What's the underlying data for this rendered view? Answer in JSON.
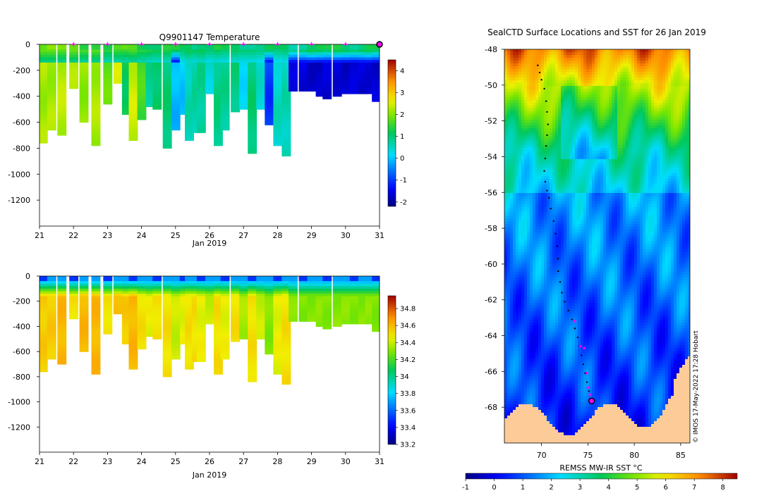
{
  "chart_data": [
    {
      "id": "temperature",
      "type": "heatmap",
      "title": "Q9901147  Temperature",
      "xlabel": "Jan 2019",
      "ylabel": "",
      "xlim": [
        21,
        31
      ],
      "ylim": [
        -1400,
        0
      ],
      "x_ticks": [
        "21",
        "22",
        "23",
        "24",
        "25",
        "26",
        "27",
        "28",
        "29",
        "30",
        "31"
      ],
      "y_ticks": [
        "0",
        "-200",
        "-400",
        "-600",
        "-800",
        "-1000",
        "-1200"
      ],
      "colorbar": {
        "min": -2.2,
        "max": 4.5,
        "ticks": [
          "-2",
          "-1",
          "0",
          "1",
          "2",
          "3",
          "4"
        ],
        "tick_values": [
          -2,
          -1,
          0,
          1,
          2,
          3,
          4
        ]
      },
      "surface_markers": [
        22,
        23,
        24,
        25,
        26,
        27,
        28,
        29,
        30
      ],
      "end_marker": 31,
      "profiles": {
        "times": [
          21.1,
          21.35,
          21.65,
          22.0,
          22.3,
          22.65,
          23.0,
          23.3,
          23.55,
          23.75,
          24.0,
          24.25,
          24.45,
          24.75,
          25.0,
          25.25,
          25.4,
          25.6,
          25.75,
          26.0,
          26.25,
          26.45,
          26.75,
          27.0,
          27.25,
          27.5,
          27.75,
          28.0,
          28.25,
          28.45,
          28.75,
          29.0,
          29.25,
          29.45,
          29.75,
          30.0,
          30.25,
          30.5,
          30.7,
          30.9
        ],
        "max_depth": [
          760,
          650,
          690,
          340,
          600,
          780,
          450,
          300,
          540,
          740,
          580,
          470,
          500,
          790,
          650,
          530,
          740,
          680,
          670,
          370,
          770,
          650,
          520,
          490,
          840,
          500,
          620,
          780,
          860,
          360,
          350,
          360,
          400,
          410,
          390,
          380,
          380,
          380,
          380,
          430
        ],
        "mixed_layer_temp": [
          1.8,
          1.8,
          1.7,
          1.8,
          1.6,
          1.7,
          1.4,
          1.5,
          1.5,
          1.6,
          1.4,
          1.3,
          1.2,
          1.3,
          1.1,
          1.0,
          1.2,
          1.1,
          1.2,
          1.0,
          1.1,
          1.0,
          1.1,
          1.0,
          1.0,
          0.9,
          1.0,
          0.9,
          1.0,
          0.8,
          1.0,
          1.2,
          1.1,
          1.0,
          1.2,
          1.1,
          1.0,
          1.1,
          1.2,
          1.0
        ],
        "deep_temp": [
          2.2,
          2.2,
          2.3,
          2.2,
          2.1,
          2.2,
          1.8,
          2.4,
          1.2,
          2.4,
          1.6,
          0.8,
          1.1,
          1.0,
          -0.1,
          0.0,
          0.6,
          0.7,
          0.8,
          0.4,
          0.9,
          0.8,
          0.9,
          0.2,
          1.0,
          0.4,
          -1.0,
          0.5,
          0.6,
          -1.7,
          -1.6,
          -1.7,
          -1.8,
          -1.7,
          -1.6,
          -1.7,
          -1.7,
          -1.7,
          -1.6,
          -1.7
        ]
      }
    },
    {
      "id": "salinity",
      "type": "heatmap",
      "title": "",
      "xlabel": "Jan 2019",
      "ylabel": "",
      "xlim": [
        21,
        31
      ],
      "ylim": [
        -1400,
        0
      ],
      "x_ticks": [
        "21",
        "22",
        "23",
        "24",
        "25",
        "26",
        "27",
        "28",
        "29",
        "30",
        "31"
      ],
      "y_ticks": [
        "0",
        "-200",
        "-400",
        "-600",
        "-800",
        "-1000",
        "-1200"
      ],
      "colorbar": {
        "min": 33.2,
        "max": 34.95,
        "ticks": [
          "33.2",
          "33.4",
          "33.6",
          "33.8",
          "34",
          "34.2",
          "34.4",
          "34.6",
          "34.8"
        ],
        "tick_values": [
          33.2,
          33.4,
          33.6,
          33.8,
          34.0,
          34.2,
          34.4,
          34.6,
          34.8
        ]
      },
      "profiles": {
        "deep_sal": [
          34.55,
          34.55,
          34.6,
          34.5,
          34.6,
          34.6,
          34.5,
          34.6,
          34.55,
          34.6,
          34.5,
          34.45,
          34.5,
          34.5,
          34.4,
          34.45,
          34.5,
          34.5,
          34.45,
          34.4,
          34.5,
          34.45,
          34.5,
          34.35,
          34.5,
          34.4,
          34.3,
          34.45,
          34.5,
          34.3,
          34.3,
          34.3,
          34.3,
          34.3,
          34.3,
          34.3,
          34.3,
          34.3,
          34.3,
          34.3
        ]
      }
    },
    {
      "id": "sst_map",
      "type": "heatmap",
      "title": "SealCTD Surface Locations and SST for 26 Jan 2019",
      "xlabel": "",
      "ylabel": "",
      "xlim": [
        66,
        86
      ],
      "ylim": [
        -70,
        -48
      ],
      "x_ticks": [
        "70",
        "75",
        "80",
        "85"
      ],
      "x_tick_values": [
        70,
        75,
        80,
        85
      ],
      "y_ticks": [
        "-48",
        "-50",
        "-52",
        "-54",
        "-56",
        "-58",
        "-60",
        "-62",
        "-64",
        "-66",
        "-68"
      ],
      "y_tick_values": [
        -48,
        -50,
        -52,
        -54,
        -56,
        -58,
        -60,
        -62,
        -64,
        -66,
        -68
      ],
      "colorbar": {
        "label": "REMSS MW-IR SST °C",
        "min": -1,
        "max": 8.5,
        "ticks": [
          "-1",
          "0",
          "1",
          "2",
          "3",
          "4",
          "5",
          "6",
          "7",
          "8"
        ],
        "tick_values": [
          -1,
          0,
          1,
          2,
          3,
          4,
          5,
          6,
          7,
          8
        ]
      },
      "track": {
        "lon": [
          69.6,
          69.8,
          70.0,
          70.3,
          70.5,
          70.6,
          70.7,
          70.6,
          70.5,
          70.4,
          70.3,
          70.4,
          70.6,
          70.8,
          71.0,
          71.3,
          71.5,
          71.7,
          71.8,
          71.8,
          72.0,
          72.2,
          72.5,
          72.9,
          73.3,
          73.6,
          73.9,
          74.1,
          74.3,
          74.5,
          74.7,
          74.9,
          75.1,
          75.4
        ],
        "lat": [
          -48.9,
          -49.3,
          -49.7,
          -50.2,
          -50.9,
          -51.5,
          -52.2,
          -52.8,
          -53.4,
          -54.1,
          -54.8,
          -55.4,
          -55.9,
          -56.3,
          -56.9,
          -57.6,
          -58.3,
          -59.0,
          -59.7,
          -60.4,
          -61.0,
          -61.6,
          -62.1,
          -62.6,
          -63.1,
          -63.6,
          -64.1,
          -64.6,
          -65.1,
          -65.6,
          -66.1,
          -66.6,
          -67.1,
          -67.6
        ]
      },
      "magenta_markers": {
        "lon": [
          73.6,
          74.2,
          74.6,
          74.9,
          75.0,
          75.2
        ],
        "lat": [
          -63.2,
          -64.6,
          -64.7,
          -66.1,
          -66.9,
          -67.3
        ]
      },
      "current_position": {
        "lon": 75.4,
        "lat": -67.65
      }
    }
  ],
  "credit": "© IMOS 17-May-2022 17:28 Hobart"
}
